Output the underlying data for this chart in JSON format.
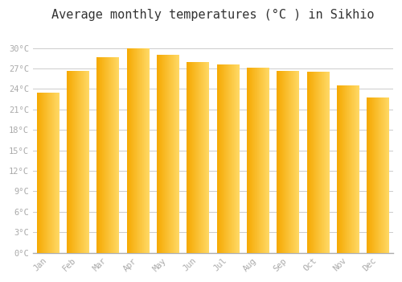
{
  "months": [
    "Jan",
    "Feb",
    "Mar",
    "Apr",
    "May",
    "Jun",
    "Jul",
    "Aug",
    "Sep",
    "Oct",
    "Nov",
    "Dec"
  ],
  "values": [
    23.5,
    26.6,
    28.6,
    30.0,
    29.0,
    28.0,
    27.6,
    27.1,
    26.6,
    26.5,
    24.5,
    22.8
  ],
  "bar_color_left": "#F5A800",
  "bar_color_right": "#FFD966",
  "background_color": "#FFFFFF",
  "grid_color": "#CCCCCC",
  "title": "Average monthly temperatures (°C ) in Sikhio",
  "title_fontsize": 11,
  "tick_label_color": "#AAAAAA",
  "ylim": [
    0,
    33
  ],
  "yticks": [
    0,
    3,
    6,
    9,
    12,
    15,
    18,
    21,
    24,
    27,
    30
  ],
  "bar_width": 0.75,
  "fig_width": 5.0,
  "fig_height": 3.5,
  "dpi": 100
}
